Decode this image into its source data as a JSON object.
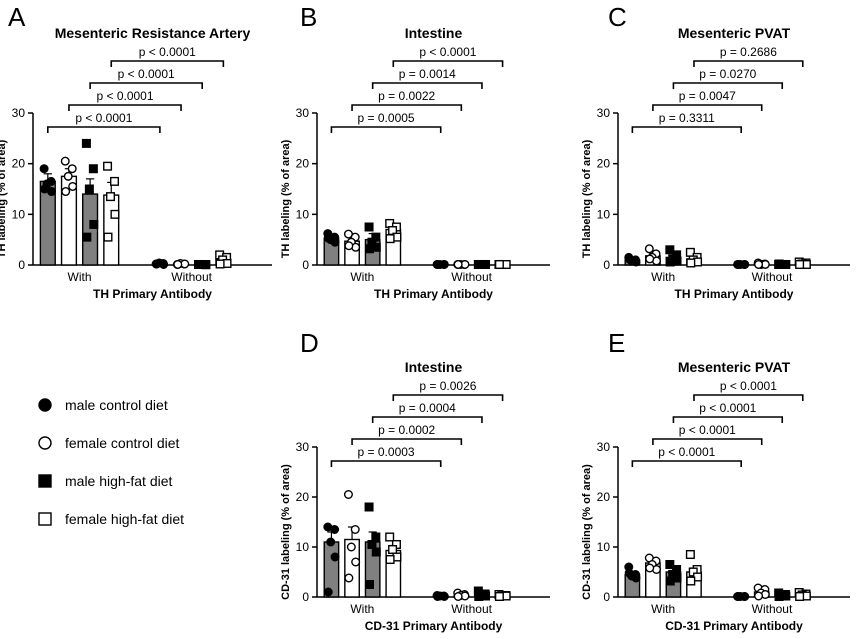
{
  "colors": {
    "fill_male": "#808080",
    "fill_female": "#ffffff",
    "ink": "#000000"
  },
  "legend": [
    {
      "label": "male control diet",
      "marker": "filled-circle"
    },
    {
      "label": "female control diet",
      "marker": "open-circle"
    },
    {
      "label": "male high-fat diet",
      "marker": "filled-square"
    },
    {
      "label": "female high-fat diet",
      "marker": "open-square"
    }
  ],
  "chart_data": [
    {
      "panel": "A",
      "type": "bar",
      "title": "Mesenteric Resistance Artery",
      "xlabel": "TH Primary Antibody",
      "ylabel": "TH labeling (% of area)",
      "groups": [
        "With",
        "Without"
      ],
      "ylim": [
        0,
        30
      ],
      "yticks": [
        0,
        10,
        20,
        30
      ],
      "series": [
        {
          "name": "male control diet",
          "values": [
            16.5,
            0.3
          ],
          "sem": [
            1.5,
            0.1
          ],
          "points": [
            [
              19,
              16.5,
              16,
              14.5,
              15
            ],
            [
              0.2,
              0.3,
              0.4,
              0.1,
              0.2
            ]
          ]
        },
        {
          "name": "female control diet",
          "values": [
            17.5,
            0.2
          ],
          "sem": [
            1.5,
            0.1
          ],
          "points": [
            [
              20.5,
              19,
              17.5,
              15.5,
              14.5
            ],
            [
              0.1,
              0.2,
              0.3,
              0.2,
              0.1
            ]
          ]
        },
        {
          "name": "male high-fat diet",
          "values": [
            14,
            0.1
          ],
          "sem": [
            3,
            0.05
          ],
          "points": [
            [
              24,
              19,
              15,
              8,
              5.5
            ],
            [
              0.1,
              0.1,
              0.1,
              0.05,
              0.1
            ]
          ]
        },
        {
          "name": "female high-fat diet",
          "values": [
            13.8,
            1.1
          ],
          "sem": [
            2.5,
            0.6
          ],
          "points": [
            [
              19.5,
              16.5,
              13.5,
              10,
              5.5
            ],
            [
              2,
              1.5,
              1,
              0.3,
              0.2
            ]
          ]
        }
      ],
      "comparisons": [
        "p < 0.0001",
        "p < 0.0001",
        "p < 0.0001",
        "p < 0.0001"
      ]
    },
    {
      "panel": "B",
      "type": "bar",
      "title": "Intestine",
      "xlabel": "TH Primary Antibody",
      "ylabel": "TH labeling (% of area)",
      "groups": [
        "With",
        "Without"
      ],
      "ylim": [
        0,
        30
      ],
      "yticks": [
        0,
        10,
        20,
        30
      ],
      "series": [
        {
          "name": "male control diet",
          "values": [
            5.3,
            0.1
          ],
          "sem": [
            0.5,
            0.05
          ],
          "points": [
            [
              6.2,
              5.5,
              5,
              4.5,
              5.3
            ],
            [
              0.1,
              0.1,
              0.1,
              0.1,
              0.1
            ]
          ]
        },
        {
          "name": "female control diet",
          "values": [
            4.7,
            0.1
          ],
          "sem": [
            0.7,
            0.05
          ],
          "points": [
            [
              6.1,
              5.5,
              4.5,
              3.5,
              3.8
            ],
            [
              0.1,
              0.1,
              0.1,
              0.1,
              0.1
            ]
          ]
        },
        {
          "name": "male high-fat diet",
          "values": [
            5,
            0.1
          ],
          "sem": [
            1.2,
            0.05
          ],
          "points": [
            [
              7.5,
              5.5,
              4.5,
              3.5,
              3.2
            ],
            [
              0.1,
              0.1,
              0.1,
              0.1,
              0.1
            ]
          ]
        },
        {
          "name": "female high-fat diet",
          "values": [
            7,
            0.1
          ],
          "sem": [
            0.9,
            0.05
          ],
          "points": [
            [
              8.2,
              7.5,
              6.8,
              5.5,
              5.2
            ],
            [
              0.1,
              0.1,
              0.1,
              0.1,
              0.1
            ]
          ]
        }
      ],
      "comparisons": [
        "p = 0.0005",
        "p = 0.0022",
        "p = 0.0014",
        "p < 0.0001"
      ]
    },
    {
      "panel": "C",
      "type": "bar",
      "title": "Mesenteric PVAT",
      "xlabel": "TH Primary Antibody",
      "ylabel": "TH labeling (% of area)",
      "groups": [
        "With",
        "Without"
      ],
      "ylim": [
        0,
        30
      ],
      "yticks": [
        0,
        10,
        20,
        30
      ],
      "series": [
        {
          "name": "male control diet",
          "values": [
            1,
            0.1
          ],
          "sem": [
            0.2,
            0.05
          ],
          "points": [
            [
              1.5,
              1,
              0.8,
              0.6,
              1.2
            ],
            [
              0.1,
              0.1,
              0.1,
              0.1,
              0.1
            ]
          ]
        },
        {
          "name": "female control diet",
          "values": [
            1.8,
            0.2
          ],
          "sem": [
            0.5,
            0.1
          ],
          "points": [
            [
              3.2,
              2.2,
              1.5,
              0.8,
              1.2
            ],
            [
              0.4,
              0.2,
              0.1,
              0.1,
              0.1
            ]
          ]
        },
        {
          "name": "male high-fat diet",
          "values": [
            1.5,
            0.1
          ],
          "sem": [
            0.4,
            0.05
          ],
          "points": [
            [
              3,
              2,
              1.2,
              0.8,
              0.6
            ],
            [
              0.1,
              0.1,
              0.1,
              0.1,
              0.2
            ]
          ]
        },
        {
          "name": "female high-fat diet",
          "values": [
            1.2,
            0.2
          ],
          "sem": [
            0.4,
            0.1
          ],
          "points": [
            [
              2.5,
              1.5,
              1,
              0.6,
              0.4
            ],
            [
              0.6,
              0.4,
              0.2,
              0.1,
              0.1
            ]
          ]
        }
      ],
      "comparisons": [
        "p = 0.3311",
        "p = 0.0047",
        "p = 0.0270",
        "p = 0.2686"
      ]
    },
    {
      "panel": "D",
      "type": "bar",
      "title": "Intestine",
      "xlabel": "CD-31 Primary Antibody",
      "ylabel": "CD-31 labeling (% of area)",
      "groups": [
        "With",
        "Without"
      ],
      "ylim": [
        0,
        30
      ],
      "yticks": [
        0,
        10,
        20,
        30
      ],
      "series": [
        {
          "name": "male control diet",
          "values": [
            11,
            0.2
          ],
          "sem": [
            2,
            0.1
          ],
          "points": [
            [
              14,
              13.5,
              11,
              8,
              1
            ],
            [
              0.3,
              0.2,
              0.2,
              0.1,
              0.1
            ]
          ]
        },
        {
          "name": "female control diet",
          "values": [
            11.5,
            0.3
          ],
          "sem": [
            2.5,
            0.1
          ],
          "points": [
            [
              20.5,
              13.5,
              10,
              7,
              3.8
            ],
            [
              0.8,
              0.5,
              0.3,
              0.2,
              0.1
            ]
          ]
        },
        {
          "name": "male high-fat diet",
          "values": [
            11,
            0.4
          ],
          "sem": [
            2,
            0.2
          ],
          "points": [
            [
              18,
              12,
              10.5,
              9,
              2.5
            ],
            [
              1.2,
              0.6,
              0.3,
              0.2,
              0.1
            ]
          ]
        },
        {
          "name": "female high-fat diet",
          "values": [
            9.3,
            0.3
          ],
          "sem": [
            1,
            0.1
          ],
          "points": [
            [
              12,
              10.5,
              9.5,
              8,
              7.5
            ],
            [
              0.5,
              0.3,
              0.2,
              0.2,
              0.1
            ]
          ]
        }
      ],
      "comparisons": [
        "p = 0.0003",
        "p = 0.0002",
        "p = 0.0004",
        "p = 0.0026"
      ]
    },
    {
      "panel": "E",
      "type": "bar",
      "title": "Mesenteric PVAT",
      "xlabel": "CD-31 Primary Antibody",
      "ylabel": "CD-31 labeling (% of area)",
      "groups": [
        "With",
        "Without"
      ],
      "ylim": [
        0,
        30
      ],
      "yticks": [
        0,
        10,
        20,
        30
      ],
      "series": [
        {
          "name": "male control diet",
          "values": [
            4.5,
            0.1
          ],
          "sem": [
            0.5,
            0.05
          ],
          "points": [
            [
              6,
              4.5,
              4.2,
              3.8,
              4.8
            ],
            [
              0.1,
              0.1,
              0.1,
              0.1,
              0.1
            ]
          ]
        },
        {
          "name": "female control diet",
          "values": [
            6.8,
            1
          ],
          "sem": [
            0.6,
            0.3
          ],
          "points": [
            [
              7.8,
              7.2,
              6.5,
              5.5,
              5.8
            ],
            [
              1.8,
              1.5,
              0.8,
              0.5,
              0.2
            ]
          ]
        },
        {
          "name": "male high-fat diet",
          "values": [
            5,
            0.4
          ],
          "sem": [
            0.7,
            0.1
          ],
          "points": [
            [
              6.5,
              5.5,
              4.5,
              3.8,
              3.2
            ],
            [
              0.8,
              0.5,
              0.3,
              0.2,
              0.1
            ]
          ]
        },
        {
          "name": "female high-fat diet",
          "values": [
            5,
            0.5
          ],
          "sem": [
            0.8,
            0.1
          ],
          "points": [
            [
              8.5,
              5.5,
              5,
              4,
              3.2
            ],
            [
              0.9,
              0.6,
              0.4,
              0.2,
              0.1
            ]
          ]
        }
      ],
      "comparisons": [
        "p < 0.0001",
        "p < 0.0001",
        "p < 0.0001",
        "p < 0.0001"
      ]
    }
  ]
}
